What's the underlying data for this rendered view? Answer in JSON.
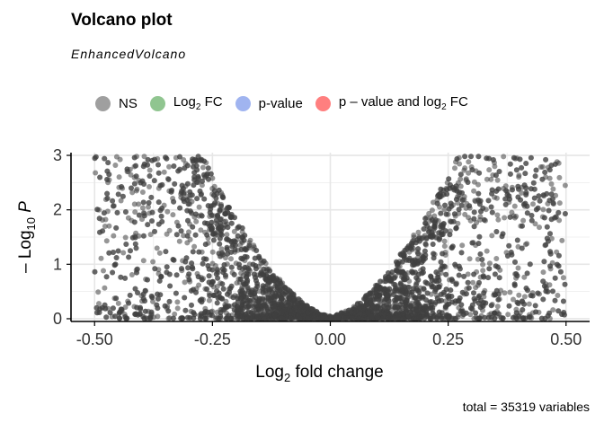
{
  "title": "Volcano plot",
  "subtitle": "EnhancedVolcano",
  "legend": [
    {
      "key": "ns",
      "label": "NS",
      "sub": "",
      "tail": "",
      "color": "#404040"
    },
    {
      "key": "fc",
      "label": "Log",
      "sub": "2",
      "tail": " FC",
      "color": "#228b22"
    },
    {
      "key": "p",
      "label": "p-value",
      "sub": "",
      "tail": "",
      "color": "#4169e1"
    },
    {
      "key": "pfc",
      "label": "p – value and log",
      "sub": "2",
      "tail": " FC",
      "color": "#ff0000"
    }
  ],
  "caption": "total = 35319 variables",
  "chart_data": {
    "type": "scatter",
    "xlabel_main": "Log",
    "xlabel_sub": "2",
    "xlabel_tail": " fold change",
    "ylabel_main": "– Log",
    "ylabel_sub": "10",
    "ylabel_tail": " P",
    "xlim": [
      -0.55,
      0.55
    ],
    "ylim": [
      -0.05,
      3.05
    ],
    "x_ticks": [
      -0.5,
      -0.25,
      0.0,
      0.25,
      0.5
    ],
    "x_tick_labels": [
      "-0.50",
      "-0.25",
      "0.00",
      "0.25",
      "0.50"
    ],
    "y_ticks": [
      0,
      1,
      2,
      3
    ],
    "y_tick_labels": [
      "0",
      "1",
      "2",
      "3"
    ],
    "grid": true,
    "legend_position": "top",
    "point_color": "#404040",
    "series": [
      {
        "name": "NS",
        "points": "35319 variables, symmetric volcano shape: -log10 P rises from 0 at log2 FC = 0 to about 3 near |log2 FC| = 0.25-0.5"
      }
    ]
  }
}
